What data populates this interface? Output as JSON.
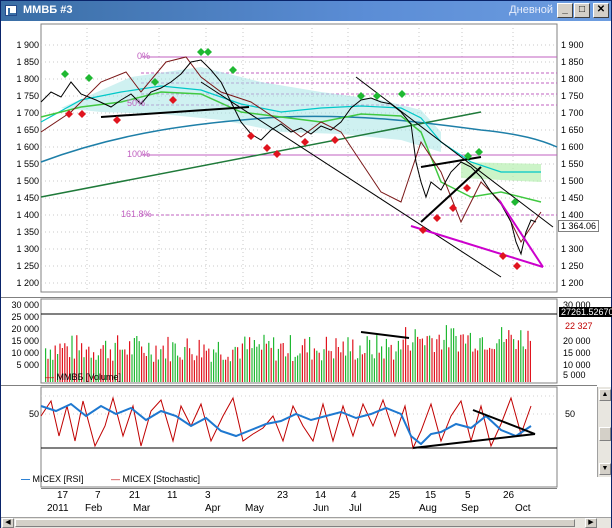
{
  "window": {
    "title": "ММВБ #3",
    "period": "Дневной",
    "buttons": {
      "minimize": "_",
      "maximize": "□",
      "close": "✕"
    }
  },
  "price_panel": {
    "y_ticks": [
      "1 900",
      "1 850",
      "1 800",
      "1 750",
      "1 700",
      "1 650",
      "1 600",
      "1 550",
      "1 500",
      "1 450",
      "1 400",
      "1 350",
      "1 300",
      "1 250",
      "1 200"
    ],
    "fib_labels": [
      "0%",
      "50%",
      "100%",
      "161.8%"
    ],
    "fib_partial": "50%",
    "last_price": "1 364.06"
  },
  "volume_panel": {
    "y_ticks_left": [
      "30 000",
      "25 000",
      "20 000",
      "15 000",
      "10 000",
      "5 000"
    ],
    "y_ticks_right": [
      "30 000",
      "20 000",
      "15 000",
      "10 000",
      "5 000"
    ],
    "tag_black": "27261.52670",
    "tag_red": "22 327",
    "legend": "ММВБ [Volume]"
  },
  "osc_panel": {
    "level_left": "50",
    "level_right": "50",
    "legend_rsi": "MICEX [RSI]",
    "legend_stoch": "MICEX [Stochastic]"
  },
  "time_axis": {
    "days": [
      "17",
      "7",
      "21",
      "11",
      "3",
      "23",
      "14",
      "4",
      "25",
      "15",
      "5",
      "26"
    ],
    "months": [
      "2011",
      "Feb",
      "Mar",
      "Apr",
      "May",
      "Jun",
      "Jul",
      "Aug",
      "Sep",
      "Oct"
    ]
  },
  "colors": {
    "title_bar": "#3a6ea5",
    "up_marker": "#1fb832",
    "down_marker": "#e0141e",
    "fib_line": "#c060c0",
    "price": "#000000",
    "rsi": "#1e78d0",
    "stoch": "#c00000"
  }
}
